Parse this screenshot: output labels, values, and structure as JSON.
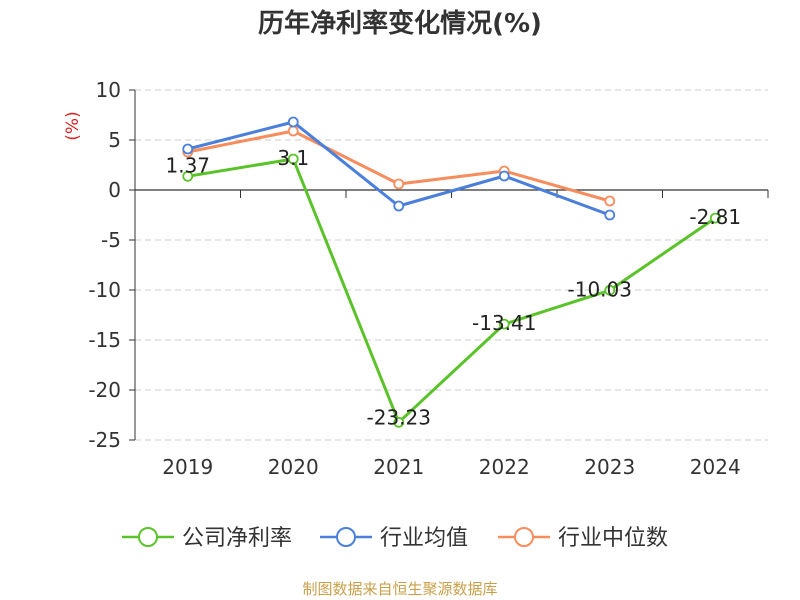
{
  "chart_data": {
    "type": "line",
    "title": "历年净利率变化情况(%)",
    "ylabel": "(%)",
    "xlabel": "",
    "categories": [
      "2019",
      "2020",
      "2021",
      "2022",
      "2023",
      "2024"
    ],
    "ylim": [
      -25,
      10
    ],
    "yticks": [
      "10",
      "5",
      "0",
      "-5",
      "-10",
      "-15",
      "-20",
      "-25"
    ],
    "ytick_values": [
      10,
      5,
      0,
      -5,
      -10,
      -15,
      -20,
      -25
    ],
    "grid": true,
    "legend_position": "bottom",
    "series": [
      {
        "name": "公司净利率",
        "color": "#5bc32a",
        "values": [
          1.37,
          3.1,
          -23.23,
          -13.41,
          -10.03,
          -2.81
        ],
        "labels": [
          "1.37",
          "3.1",
          "-23.23",
          "-13.41",
          "-10.03",
          "-2.81"
        ]
      },
      {
        "name": "行业均值",
        "color": "#4a7fdc",
        "values": [
          4.1,
          6.8,
          -1.6,
          1.4,
          -2.5,
          null
        ]
      },
      {
        "name": "行业中位数",
        "color": "#f78c5c",
        "values": [
          3.8,
          5.9,
          0.6,
          1.9,
          -1.1,
          null
        ]
      }
    ],
    "source": "制图数据来自恒生聚源数据库"
  }
}
